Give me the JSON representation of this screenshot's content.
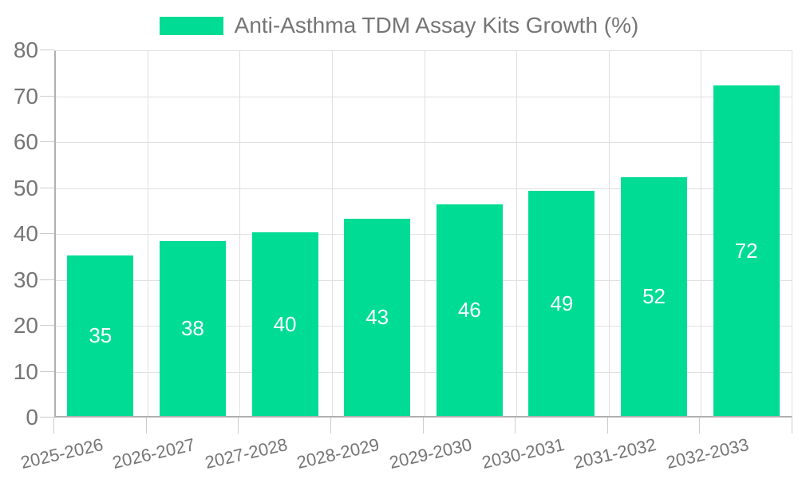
{
  "legend": {
    "label": "Anti-Asthma TDM Assay Kits Growth (%)",
    "swatch_color": "#00DC93"
  },
  "chart_data": {
    "type": "bar",
    "title": "Anti-Asthma TDM Assay Kits Growth (%)",
    "categories": [
      "2025-2026",
      "2026-2027",
      "2027-2028",
      "2028-2029",
      "2029-2030",
      "2030-2031",
      "2031-2032",
      "2032-2033"
    ],
    "values": [
      35,
      38,
      40,
      43,
      46,
      49,
      52,
      72
    ],
    "series": [
      {
        "name": "Anti-Asthma TDM Assay Kits Growth (%)",
        "values": [
          35,
          38,
          40,
          43,
          46,
          49,
          52,
          72
        ]
      }
    ],
    "xlabel": "",
    "ylabel": "",
    "ylim": [
      0,
      80
    ],
    "yticks": [
      0,
      10,
      20,
      30,
      40,
      50,
      60,
      70,
      80
    ],
    "grid": true,
    "legend_position": "top",
    "bar_value_labels": "inside-center",
    "x_label_rotation_deg": -13,
    "colors": {
      "bar": "#00DC93",
      "bar_label": "#FFFFFF",
      "axis_text": "#757575",
      "grid_line": "#E0E0E0",
      "axis_line": "#B0B0B0",
      "tick_line": "#CCCCCC",
      "background": "#FFFFFF"
    }
  }
}
